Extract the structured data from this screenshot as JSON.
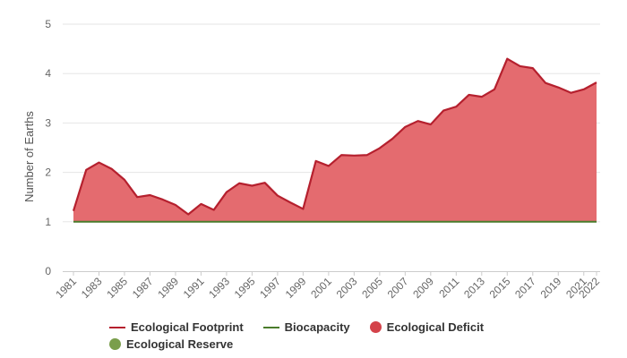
{
  "chart_data": {
    "type": "area",
    "ylabel": "Number of Earths",
    "ylim": [
      0,
      5
    ],
    "yticks": [
      "0",
      "1",
      "2",
      "3",
      "4",
      "5"
    ],
    "grid": true,
    "x": [
      1981,
      1982,
      1983,
      1984,
      1985,
      1986,
      1987,
      1988,
      1989,
      1990,
      1991,
      1992,
      1993,
      1994,
      1995,
      1996,
      1997,
      1998,
      1999,
      2000,
      2001,
      2002,
      2003,
      2004,
      2005,
      2006,
      2007,
      2008,
      2009,
      2010,
      2011,
      2012,
      2013,
      2014,
      2015,
      2016,
      2017,
      2018,
      2019,
      2020,
      2021,
      2022
    ],
    "xtick_labels": [
      "1981",
      "1983",
      "1985",
      "1987",
      "1989",
      "1991",
      "1993",
      "1995",
      "1997",
      "1999",
      "2001",
      "2003",
      "2005",
      "2007",
      "2009",
      "2011",
      "2013",
      "2015",
      "2017",
      "2019",
      "2021",
      "2022"
    ],
    "series": [
      {
        "name": "Ecological Footprint",
        "color": "#b5202e",
        "values": [
          1.22,
          2.05,
          2.2,
          2.07,
          1.85,
          1.5,
          1.54,
          1.45,
          1.34,
          1.15,
          1.36,
          1.24,
          1.6,
          1.78,
          1.73,
          1.79,
          1.53,
          1.39,
          1.26,
          2.23,
          2.13,
          2.35,
          2.34,
          2.35,
          2.49,
          2.68,
          2.92,
          3.04,
          2.97,
          3.25,
          3.33,
          3.57,
          3.53,
          3.68,
          4.3,
          4.15,
          4.11,
          3.81,
          3.72,
          3.61,
          3.68,
          3.82
        ]
      },
      {
        "name": "Biocapacity",
        "color": "#4a7c2b",
        "values": [
          1,
          1,
          1,
          1,
          1,
          1,
          1,
          1,
          1,
          1,
          1,
          1,
          1,
          1,
          1,
          1,
          1,
          1,
          1,
          1,
          1,
          1,
          1,
          1,
          1,
          1,
          1,
          1,
          1,
          1,
          1,
          1,
          1,
          1,
          1,
          1,
          1,
          1,
          1,
          1,
          1,
          1
        ]
      }
    ],
    "area_fill": {
      "name": "Ecological Deficit",
      "color": "#e46b6f"
    },
    "legend": [
      {
        "name": "Ecological Footprint",
        "marker": "line",
        "color": "#b5202e"
      },
      {
        "name": "Biocapacity",
        "marker": "line",
        "color": "#4a7c2b"
      },
      {
        "name": "Ecological Deficit",
        "marker": "dot",
        "color": "#d4424a"
      },
      {
        "name": "Ecological Reserve",
        "marker": "dot",
        "color": "#7a9e4c"
      }
    ],
    "legend_position": "bottom"
  }
}
